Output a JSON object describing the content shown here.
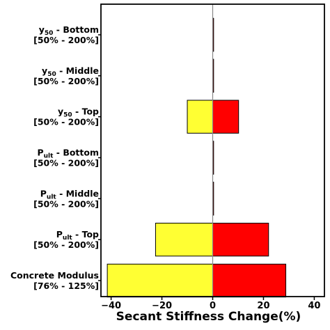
{
  "chart_data": {
    "type": "bar",
    "orientation": "horizontal",
    "style": "tornado",
    "categories": [
      {
        "name_main": "y",
        "name_sub": "50",
        "name_rest": " - Bottom",
        "range": "[50% - 200%]"
      },
      {
        "name_main": "y",
        "name_sub": "50",
        "name_rest": " - Middle",
        "range": "[50% - 200%]"
      },
      {
        "name_main": "y",
        "name_sub": "50",
        "name_rest": " - Top",
        "range": "[50% - 200%]"
      },
      {
        "name_main": "P",
        "name_sub": "ult",
        "name_rest": " - Bottom",
        "range": "[50% - 200%]"
      },
      {
        "name_main": "P",
        "name_sub": "ult",
        "name_rest": " - Middle",
        "range": "[50% - 200%]"
      },
      {
        "name_main": "P",
        "name_sub": "ult",
        "name_rest": " - Top",
        "range": "[50% - 200%]"
      },
      {
        "name_main": "Concrete Modulus",
        "name_sub": "",
        "name_rest": "",
        "range": "[76% - 125%]"
      }
    ],
    "series": [
      {
        "color": "#ffff33",
        "values": [
          0.0,
          0.0,
          -10.0,
          0.0,
          0.0,
          -22.5,
          -41.5
        ]
      },
      {
        "color": "#ff0000",
        "values": [
          0.1,
          0.3,
          10.2,
          0.1,
          0.3,
          22.0,
          28.8
        ]
      }
    ],
    "xlabel": "Secant Stiffness Change(%)",
    "xlim": [
      -44,
      44
    ],
    "xticks": [
      -40,
      -20,
      0,
      20,
      40
    ],
    "zero_line": true,
    "grid": false
  }
}
